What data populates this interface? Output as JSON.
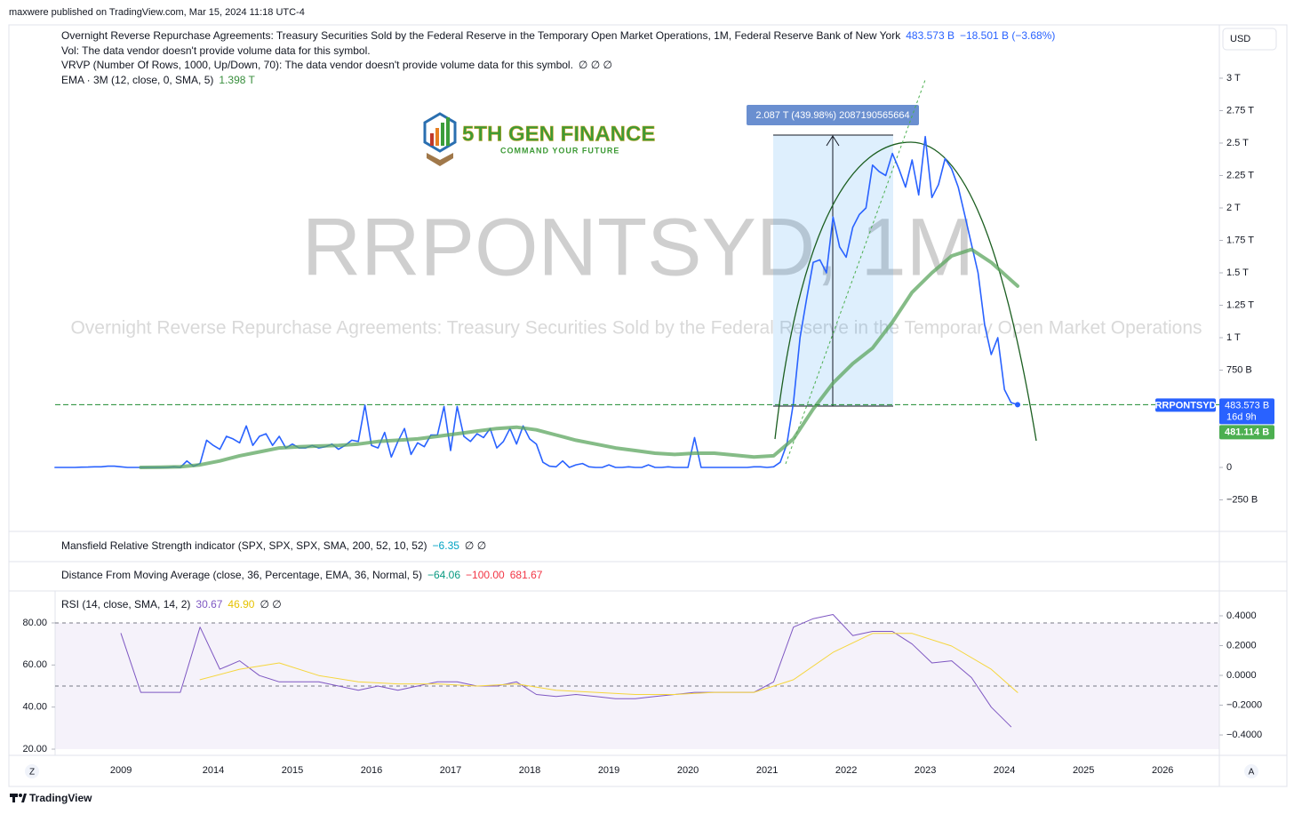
{
  "header": {
    "published": "maxwere published on TradingView.com, Mar 15, 2024 11:18 UTC-4"
  },
  "footer": {
    "brand": "TradingView"
  },
  "currency": "USD",
  "scale_buttons": [
    "Z",
    "A"
  ],
  "logo": {
    "name": "5TH GEN FINANCE",
    "tagline": "COMMAND YOUR FUTURE"
  },
  "legends": {
    "vol": "Vol: The data vendor doesn't provide volume data for this symbol.",
    "vrvp": "VRVP (Number Of Rows, 1000, Up/Down, 70): The data vendor doesn't provide volume data for this symbol.",
    "vrvp_values": "∅ ∅ ∅",
    "mansfield": {
      "name": "Mansfield Relative Strength indicator (SPX, SPX, SPX, SMA, 200, 52, 10, 52)",
      "value": "−6.35",
      "extra": "∅ ∅"
    },
    "distance": {
      "name": "Distance From Moving Average (close, 36, Percentage, EMA, 36, Normal, 5)",
      "v1": "−64.06",
      "v2": "−100.00",
      "v3": "681.67"
    }
  },
  "price_tags": {
    "symbol": "RRPONTSYD",
    "price": "483.573 B",
    "countdown": "16d 9h",
    "second": "481.114 B"
  },
  "measure_label": "2.087 T (439.98%) 2087190565664",
  "chart_data": [
    {
      "type": "line",
      "title": "RRPONTSYD, 1M",
      "subtitle": "Overnight Reverse Repurchase Agreements: Treasury Securities Sold by the Federal Reserve in the Temporary Open Market Operations",
      "x": [
        0,
        1,
        2,
        3,
        4,
        5,
        6,
        7,
        8,
        9,
        10,
        11,
        12,
        13,
        14,
        15,
        16,
        17,
        18,
        19,
        20,
        21,
        22,
        23,
        24,
        25,
        26,
        27,
        28,
        29,
        30,
        31,
        32,
        33,
        34,
        35,
        36,
        37,
        38,
        39,
        40,
        41,
        42,
        43,
        44,
        45,
        46,
        47,
        48,
        49,
        50,
        51,
        52,
        53,
        54,
        55,
        56,
        57,
        58,
        59,
        60,
        61,
        62,
        63,
        64,
        65,
        66,
        67,
        68,
        69,
        70,
        71,
        72,
        73,
        74,
        75,
        76,
        77,
        78,
        79,
        80,
        81,
        82,
        83,
        84,
        85,
        86,
        87,
        88,
        89,
        90,
        91,
        92,
        93,
        94,
        95,
        96,
        97,
        98,
        99,
        100,
        101,
        102,
        103,
        104,
        105,
        106,
        107,
        108,
        109,
        110,
        111,
        112,
        113,
        114,
        115,
        116,
        117,
        118,
        119,
        120,
        121,
        122,
        123,
        124,
        125,
        126,
        127,
        128,
        129,
        130,
        131,
        132,
        133,
        134,
        135,
        136,
        137,
        138,
        139,
        140,
        141,
        142,
        143,
        144,
        145,
        146
      ],
      "series": [
        {
          "name": "Overnight Reverse Repurchase Agreements: Treasury Securities Sold by the Federal Reserve in the Temporary Open Market Operations, 1M, Federal Reserve Bank of New York",
          "color": "#2962ff",
          "last_label": "483.573 B",
          "change_label": "−18.501 B (−3.68%)",
          "values": [
            0,
            0,
            0,
            0,
            2,
            3,
            5,
            5,
            10,
            10,
            5,
            0,
            0,
            0,
            0,
            0,
            0,
            0,
            5,
            0,
            50,
            10,
            30,
            210,
            170,
            140,
            240,
            220,
            190,
            320,
            170,
            240,
            260,
            170,
            240,
            150,
            180,
            150,
            150,
            170,
            150,
            160,
            180,
            140,
            170,
            210,
            200,
            480,
            170,
            150,
            270,
            80,
            200,
            300,
            100,
            190,
            160,
            250,
            250,
            470,
            130,
            470,
            240,
            200,
            260,
            230,
            300,
            150,
            200,
            300,
            180,
            320,
            220,
            180,
            40,
            10,
            5,
            50,
            0,
            20,
            30,
            5,
            0,
            0,
            20,
            0,
            0,
            5,
            0,
            0,
            20,
            0,
            0,
            5,
            0,
            0,
            0,
            230,
            0,
            0,
            0,
            0,
            0,
            0,
            0,
            0,
            5,
            5,
            0,
            5,
            40,
            180,
            500,
            1000,
            1300,
            1580,
            1600,
            1500,
            1930,
            1700,
            1620,
            1850,
            1950,
            2000,
            2330,
            2280,
            2250,
            2420,
            2300,
            2160,
            2370,
            2100,
            2550,
            2080,
            2180,
            2380,
            2300,
            2160,
            1940,
            1720,
            1500,
            1100,
            870,
            1000,
            600,
            500,
            483.573
          ]
        },
        {
          "name": "EMA · 3M (12, close, 0, SMA, 5)",
          "color": "#5ca65f",
          "last_label": "1.398 T",
          "x": [
            13,
            16,
            19,
            22,
            25,
            28,
            31,
            34,
            37,
            40,
            43,
            46,
            49,
            52,
            55,
            58,
            61,
            64,
            67,
            70,
            73,
            76,
            79,
            82,
            85,
            88,
            91,
            94,
            97,
            100,
            103,
            106,
            109,
            112,
            115,
            118,
            121,
            124,
            127,
            130,
            133,
            136,
            139,
            142,
            146
          ],
          "values": [
            0,
            2,
            5,
            20,
            50,
            90,
            120,
            150,
            160,
            165,
            170,
            180,
            200,
            210,
            220,
            240,
            260,
            280,
            300,
            310,
            290,
            250,
            210,
            180,
            150,
            130,
            110,
            100,
            110,
            110,
            95,
            80,
            90,
            220,
            450,
            650,
            800,
            920,
            1120,
            1350,
            1500,
            1630,
            1680,
            1580,
            1398
          ]
        }
      ],
      "xlim": [
        -7,
        176.6
      ],
      "ylim": [
        -493,
        3397
      ],
      "xticks": [
        {
          "value": 10,
          "label": "2009"
        },
        {
          "value": 24,
          "label": "2014"
        },
        {
          "value": 36,
          "label": "2015"
        },
        {
          "value": 48,
          "label": "2016"
        },
        {
          "value": 60,
          "label": "2017"
        },
        {
          "value": 72,
          "label": "2018"
        },
        {
          "value": 84,
          "label": "2019"
        },
        {
          "value": 96,
          "label": "2020"
        },
        {
          "value": 108,
          "label": "2021"
        },
        {
          "value": 120,
          "label": "2022"
        },
        {
          "value": 132,
          "label": "2023"
        },
        {
          "value": 144,
          "label": "2024"
        },
        {
          "value": 156,
          "label": "2025"
        },
        {
          "value": 168,
          "label": "2026"
        }
      ],
      "yticks": [
        {
          "value": 3000,
          "label": "3 T"
        },
        {
          "value": 2750,
          "label": "2.75 T"
        },
        {
          "value": 2500,
          "label": "2.5 T"
        },
        {
          "value": 2250,
          "label": "2.25 T"
        },
        {
          "value": 2000,
          "label": "2 T"
        },
        {
          "value": 1750,
          "label": "1.75 T"
        },
        {
          "value": 1500,
          "label": "1.5 T"
        },
        {
          "value": 1250,
          "label": "1.25 T"
        },
        {
          "value": 1000,
          "label": "1 T"
        },
        {
          "value": 750,
          "label": "750 B"
        },
        0,
        {
          "value": -250,
          "label": "−250 B"
        }
      ],
      "log_scale": false,
      "grid": false
    },
    {
      "type": "line",
      "title": "RSI (14, close, SMA, 14, 2)",
      "extra": "∅ ∅",
      "series": [
        {
          "color": "#7e57c2",
          "last_label": "30.67",
          "x": [
            10,
            13,
            16,
            19,
            22,
            25,
            28,
            31,
            34,
            37,
            40,
            43,
            46,
            49,
            52,
            55,
            58,
            61,
            64,
            67,
            70,
            73,
            76,
            79,
            82,
            85,
            88,
            91,
            94,
            97,
            100,
            103,
            106,
            109,
            112,
            115,
            118,
            121,
            124,
            127,
            130,
            133,
            136,
            139,
            142,
            145
          ],
          "values": [
            75,
            47,
            47,
            47,
            78,
            58,
            62,
            55,
            52,
            52,
            52,
            50,
            48,
            50,
            48,
            50,
            52,
            52,
            50,
            50,
            52,
            46,
            45,
            46,
            45,
            44,
            44,
            45,
            46,
            47,
            47,
            47,
            47,
            52,
            78,
            82,
            84,
            74,
            76,
            76,
            70,
            61,
            62,
            54,
            40,
            30.67
          ]
        },
        {
          "color": "#f5d63d",
          "last_label": "46.90",
          "x": [
            22,
            28,
            34,
            40,
            46,
            52,
            58,
            64,
            70,
            76,
            82,
            88,
            94,
            100,
            106,
            112,
            118,
            124,
            130,
            136,
            142,
            146
          ],
          "values": [
            53,
            58,
            61,
            55,
            52,
            51,
            51,
            50,
            51,
            48,
            47,
            46,
            46,
            47,
            47,
            53,
            66,
            75,
            75,
            69,
            58,
            46.9
          ]
        }
      ],
      "levels": [
        80,
        50
      ],
      "ylim": [
        17.05,
        95.2
      ],
      "yticks": [
        {
          "value": 80,
          "label": "80.00"
        },
        {
          "value": 60,
          "label": "60.00"
        },
        {
          "value": 40,
          "label": "40.00"
        },
        {
          "value": 20,
          "label": "20.00"
        }
      ],
      "y2lim": [
        -0.537,
        0.567
      ],
      "y2ticks": [
        {
          "value": 0.4,
          "label": "0.4000"
        },
        {
          "value": 0.2,
          "label": "0.2000"
        },
        {
          "value": 0,
          "label": "0.0000"
        },
        {
          "value": -0.2,
          "label": "−0.2000"
        },
        {
          "value": -0.4,
          "label": "−0.4000"
        }
      ],
      "grid": false
    }
  ]
}
